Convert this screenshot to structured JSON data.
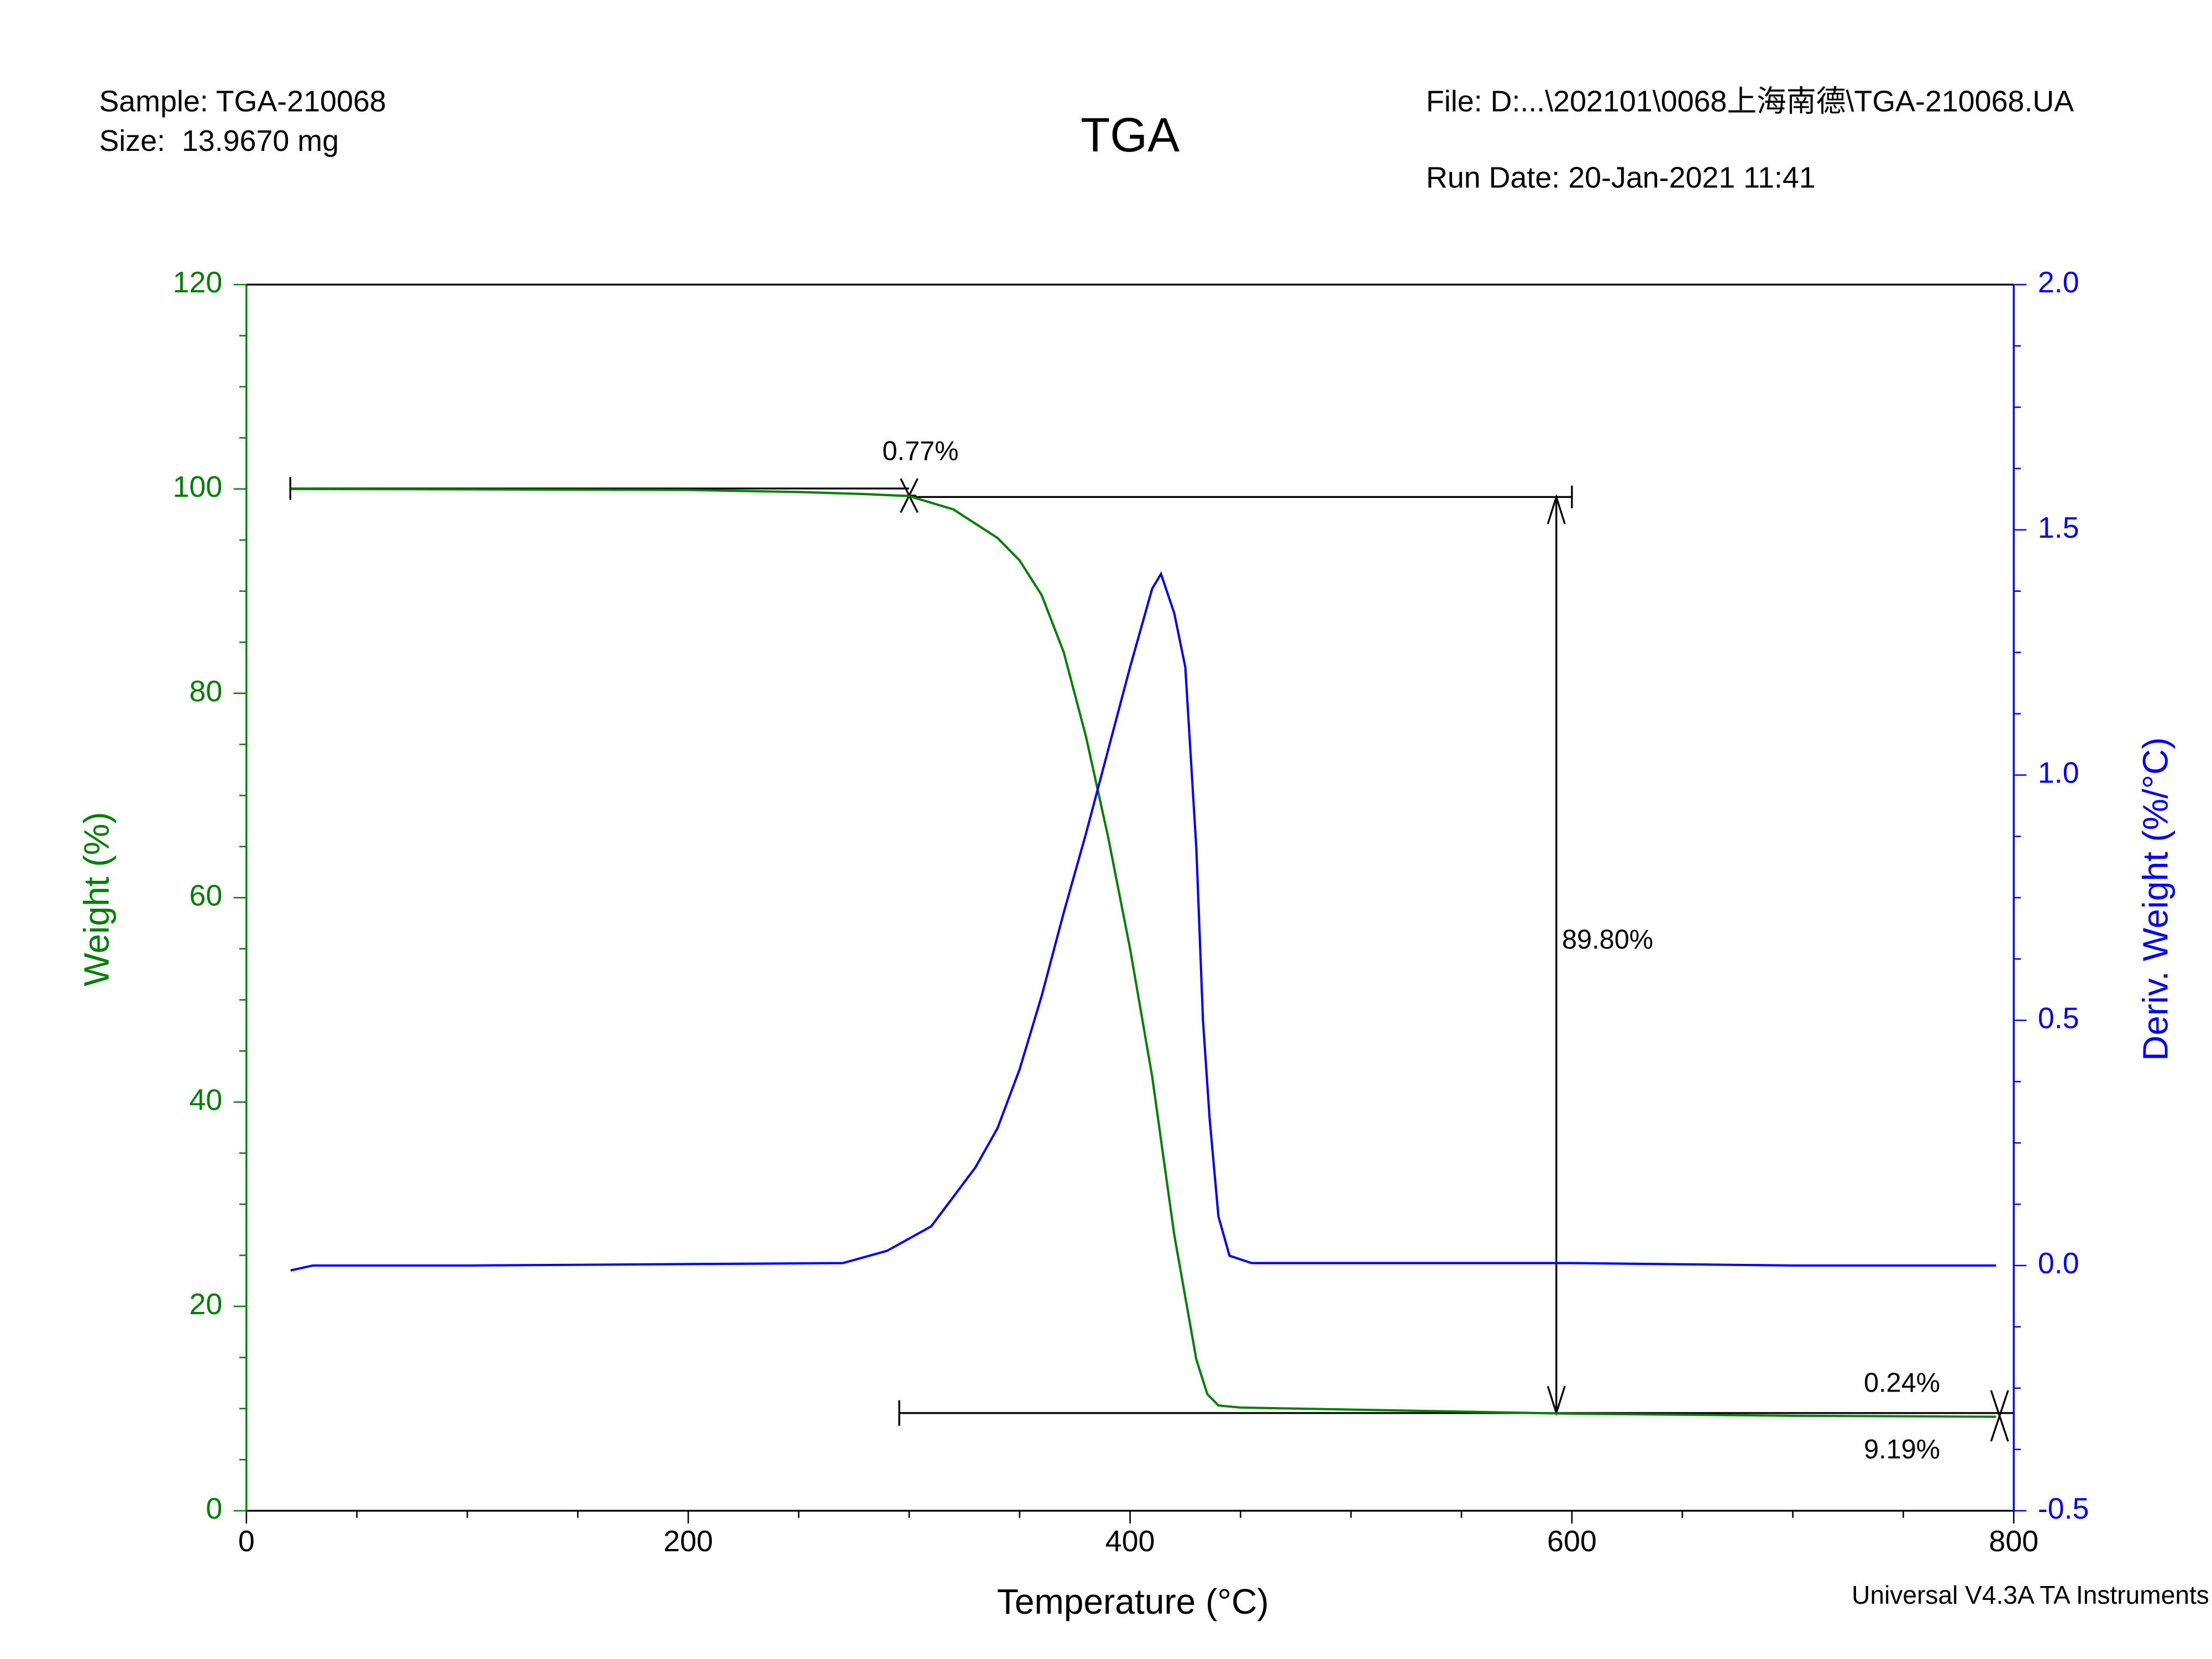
{
  "chart_data": {
    "type": "line",
    "title": "TGA",
    "sample": "Sample: TGA-210068",
    "size": "Size:  13.9670 mg",
    "file": "File: D:...\\202101\\0068上海南德\\TGA-210068.UA",
    "run_date": "Run Date: 20-Jan-2021 11:41",
    "footer": "Universal V4.3A TA Instruments",
    "x_label": "Temperature (°C)",
    "y_label": "Weight (%)",
    "y2_label": "Deriv. Weight (%/°C)",
    "xlim": [
      0,
      800
    ],
    "xticks": [
      0,
      200,
      400,
      600,
      800
    ],
    "ylim": [
      0,
      120
    ],
    "yticks": [
      0,
      20,
      40,
      60,
      80,
      100,
      120
    ],
    "y2lim": [
      -0.5,
      2.0
    ],
    "y2ticks": [
      -0.5,
      {
        "value": 0,
        "label": "0.0"
      },
      0.5,
      {
        "value": 1,
        "label": "1.0"
      },
      1.5,
      {
        "value": 2,
        "label": "2.0"
      }
    ],
    "annotations": [
      "0.77%",
      "89.80%",
      "0.24%",
      "9.19%"
    ],
    "series": [
      {
        "name": "Weight",
        "color": "#008000",
        "axis": "y",
        "x": [
          20,
          200,
          250,
          280,
          300,
          320,
          340,
          350,
          360,
          370,
          380,
          390,
          400,
          410,
          420,
          430,
          435,
          440,
          450,
          500,
          600,
          700,
          792
        ],
        "values": [
          100,
          99.9,
          99.7,
          99.5,
          99.3,
          98,
          95.2,
          93,
          89.6,
          84,
          75.8,
          66,
          55,
          42.5,
          27,
          14.8,
          11.4,
          10.3,
          10.1,
          9.9,
          9.5,
          9.3,
          9.2
        ]
      },
      {
        "name": "Deriv. Weight",
        "color": "#0000ff",
        "axis": "y2",
        "x": [
          20,
          30,
          100,
          270,
          290,
          310,
          320,
          330,
          340,
          350,
          360,
          370,
          380,
          390,
          400,
          410,
          414,
          420,
          425,
          430,
          433,
          436,
          440,
          445,
          455,
          500,
          600,
          700,
          792
        ],
        "values": [
          -0.01,
          0,
          0,
          0.005,
          0.03,
          0.08,
          0.14,
          0.2,
          0.28,
          0.4,
          0.55,
          0.72,
          0.88,
          1.05,
          1.22,
          1.38,
          1.41,
          1.33,
          1.22,
          0.85,
          0.5,
          0.3,
          0.1,
          0.02,
          0.005,
          0.005,
          0.005,
          0,
          0
        ]
      }
    ]
  }
}
